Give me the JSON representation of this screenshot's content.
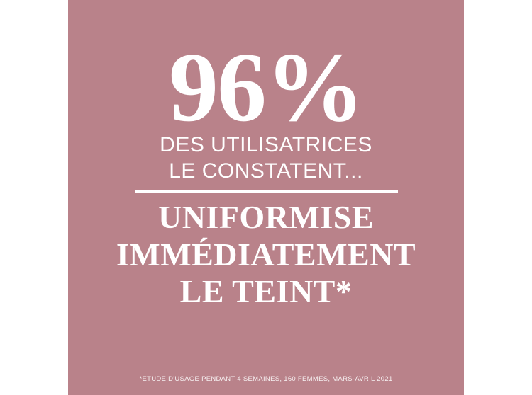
{
  "colors": {
    "frame_bg": "#ffffff",
    "panel_bg": "#b9828a",
    "text": "#ffffff"
  },
  "stat": {
    "value": "96%",
    "subline1": "DES UTILISATRICES",
    "subline2": "LE CONSTATENT..."
  },
  "headline": {
    "lines": [
      "UNIFORMISE",
      "IMMÉDIATEMENT",
      "LE TEINT*"
    ]
  },
  "footnote": {
    "text": "*ETUDE D'USAGE PENDANT 4 SEMAINES, 160 FEMMES, MARS-AVRIL 2021"
  }
}
